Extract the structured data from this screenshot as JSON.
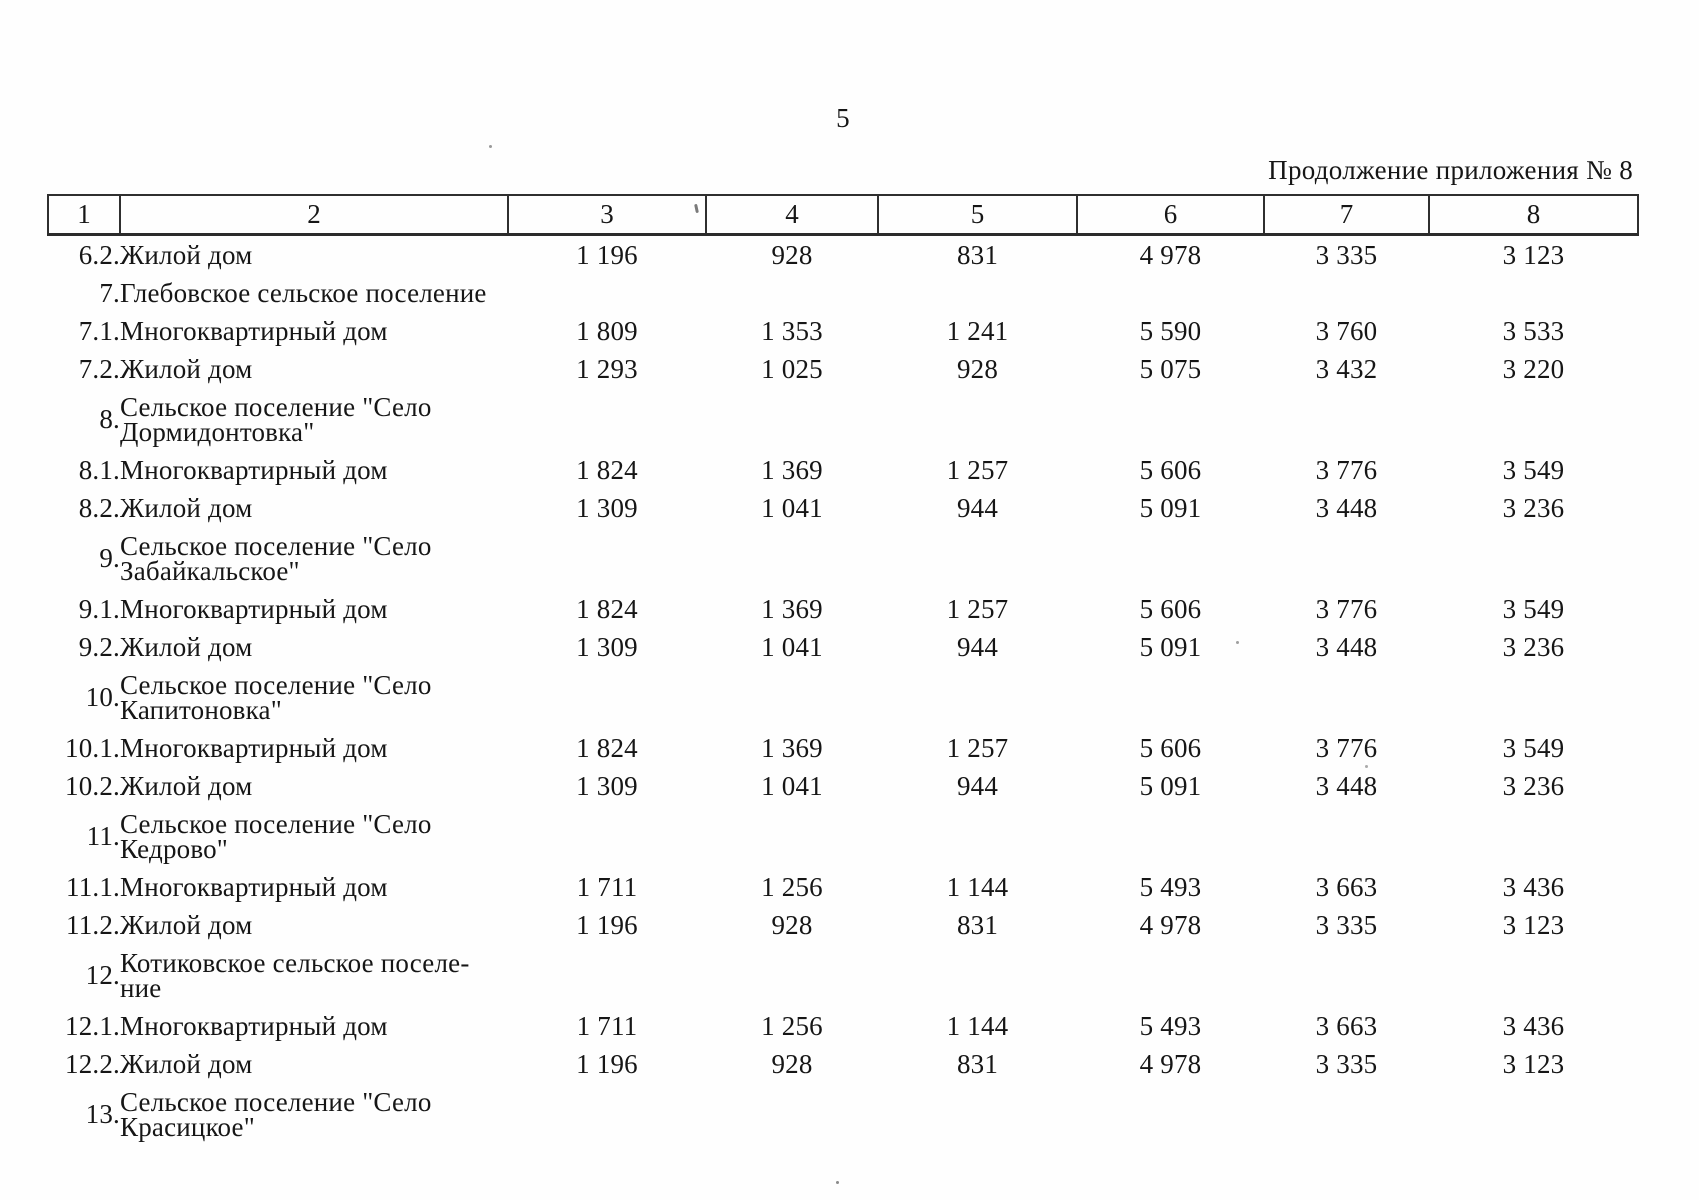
{
  "page": {
    "number": "5",
    "caption": "Продолжение приложения № 8"
  },
  "table": {
    "header": [
      "1",
      "2",
      "3",
      "4",
      "5",
      "6",
      "7",
      "8"
    ],
    "rows": [
      {
        "num": "6.2.",
        "name_lines": [
          "Жилой дом"
        ],
        "values": [
          "1 196",
          "928",
          "831",
          "4 978",
          "3 335",
          "3 123"
        ]
      },
      {
        "num": "7.",
        "name_lines": [
          "Глебовское сельское поселение"
        ],
        "values": [
          "",
          "",
          "",
          "",
          "",
          ""
        ]
      },
      {
        "num": "7.1.",
        "name_lines": [
          "Многоквартирный дом"
        ],
        "values": [
          "1 809",
          "1 353",
          "1 241",
          "5 590",
          "3 760",
          "3 533"
        ]
      },
      {
        "num": "7.2.",
        "name_lines": [
          "Жилой дом"
        ],
        "values": [
          "1 293",
          "1 025",
          "928",
          "5 075",
          "3 432",
          "3 220"
        ]
      },
      {
        "num": "8.",
        "name_lines": [
          "Сельское поселение \"Село",
          "Дормидонтовка\""
        ],
        "values": [
          "",
          "",
          "",
          "",
          "",
          ""
        ]
      },
      {
        "num": "8.1.",
        "name_lines": [
          "Многоквартирный дом"
        ],
        "values": [
          "1 824",
          "1 369",
          "1 257",
          "5 606",
          "3 776",
          "3 549"
        ]
      },
      {
        "num": "8.2.",
        "name_lines": [
          "Жилой дом"
        ],
        "values": [
          "1 309",
          "1 041",
          "944",
          "5 091",
          "3 448",
          "3 236"
        ]
      },
      {
        "num": "9.",
        "name_lines": [
          "Сельское поселение \"Село",
          "Забайкальское\""
        ],
        "values": [
          "",
          "",
          "",
          "",
          "",
          ""
        ]
      },
      {
        "num": "9.1.",
        "name_lines": [
          "Многоквартирный дом"
        ],
        "values": [
          "1 824",
          "1 369",
          "1 257",
          "5 606",
          "3 776",
          "3 549"
        ]
      },
      {
        "num": "9.2.",
        "name_lines": [
          "Жилой дом"
        ],
        "values": [
          "1 309",
          "1 041",
          "944",
          "5 091",
          "3 448",
          "3 236"
        ]
      },
      {
        "num": "10.",
        "name_lines": [
          "Сельское поселение \"Село",
          "Капитоновка\""
        ],
        "values": [
          "",
          "",
          "",
          "",
          "",
          ""
        ]
      },
      {
        "num": "10.1.",
        "name_lines": [
          "Многоквартирный дом"
        ],
        "values": [
          "1 824",
          "1 369",
          "1 257",
          "5 606",
          "3 776",
          "3 549"
        ]
      },
      {
        "num": "10.2.",
        "name_lines": [
          "Жилой дом"
        ],
        "values": [
          "1 309",
          "1 041",
          "944",
          "5 091",
          "3 448",
          "3 236"
        ]
      },
      {
        "num": "11.",
        "name_lines": [
          "Сельское поселение \"Село",
          "Кедрово\""
        ],
        "values": [
          "",
          "",
          "",
          "",
          "",
          ""
        ]
      },
      {
        "num": "11.1.",
        "name_lines": [
          "Многоквартирный дом"
        ],
        "values": [
          "1 711",
          "1 256",
          "1 144",
          "5 493",
          "3 663",
          "3 436"
        ]
      },
      {
        "num": "11.2.",
        "name_lines": [
          "Жилой дом"
        ],
        "values": [
          "1 196",
          "928",
          "831",
          "4 978",
          "3 335",
          "3 123"
        ]
      },
      {
        "num": "12.",
        "name_lines": [
          "Котиковское сельское поселе-",
          "ние"
        ],
        "values": [
          "",
          "",
          "",
          "",
          "",
          ""
        ]
      },
      {
        "num": "12.1.",
        "name_lines": [
          "Многоквартирный дом"
        ],
        "values": [
          "1 711",
          "1 256",
          "1 144",
          "5 493",
          "3 663",
          "3 436"
        ]
      },
      {
        "num": "12.2.",
        "name_lines": [
          "Жилой дом"
        ],
        "values": [
          "1 196",
          "928",
          "831",
          "4 978",
          "3 335",
          "3 123"
        ]
      },
      {
        "num": "13.",
        "name_lines": [
          "Сельское поселение \"Село",
          "Красицкое\""
        ],
        "values": [
          "",
          "",
          "",
          "",
          "",
          ""
        ]
      }
    ]
  }
}
